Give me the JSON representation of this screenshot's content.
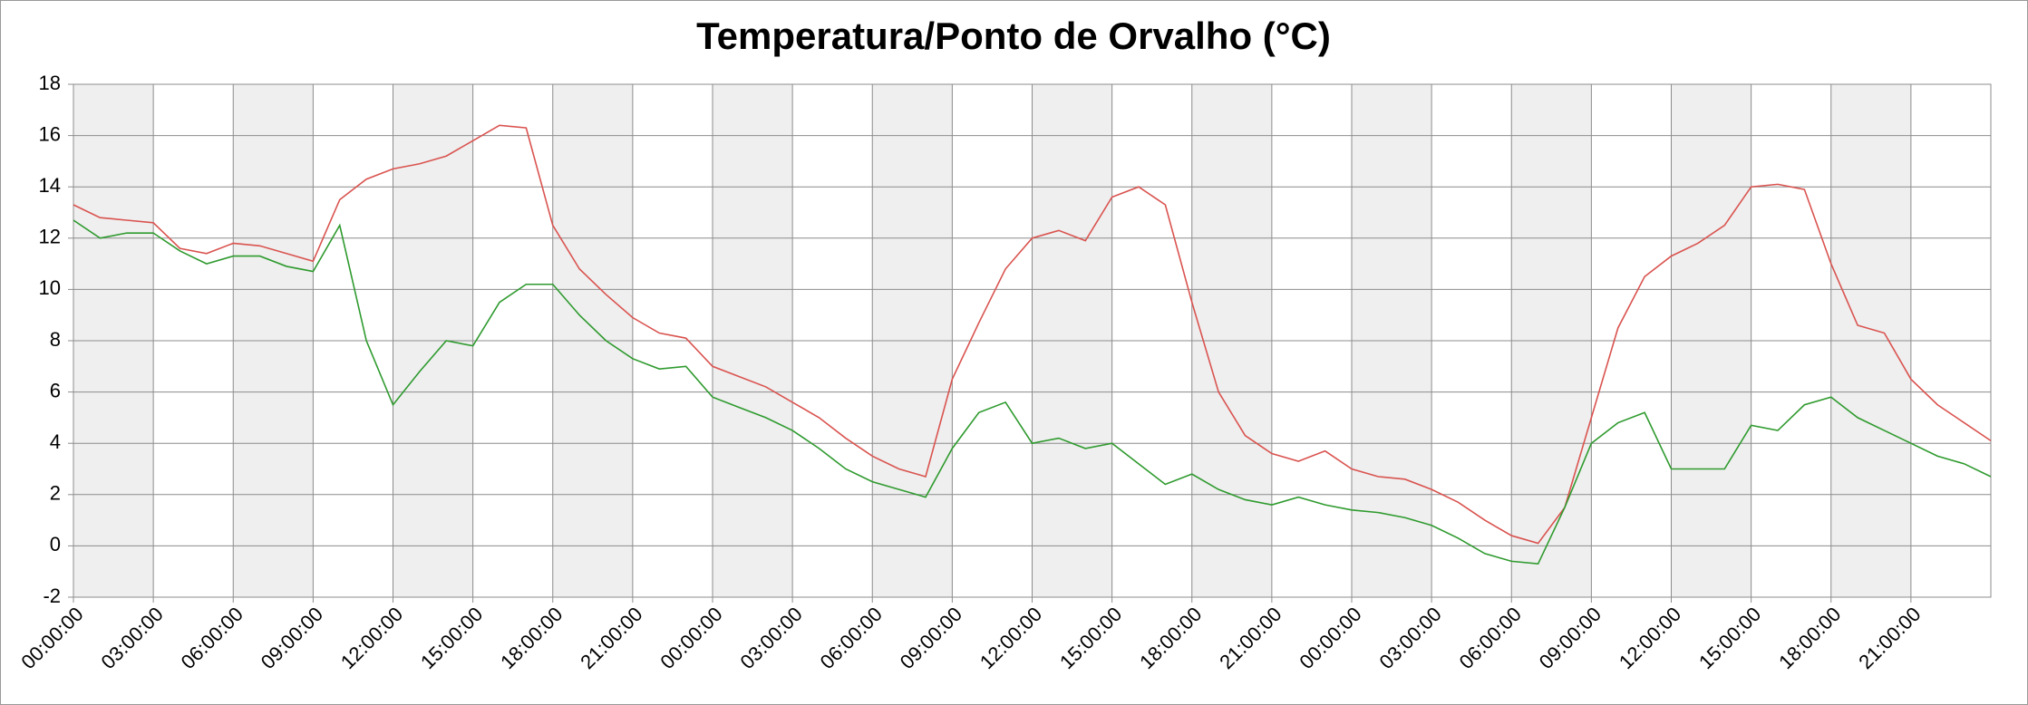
{
  "chart_data": {
    "type": "line",
    "title": "Temperatura/Ponto de Orvalho (°C)",
    "x": [
      0,
      1,
      2,
      3,
      4,
      5,
      6,
      7,
      8,
      9,
      10,
      11,
      12,
      13,
      14,
      15,
      16,
      17,
      18,
      19,
      20,
      21,
      22,
      23,
      24,
      25,
      26,
      27,
      28,
      29,
      30,
      31,
      32,
      33,
      34,
      35,
      36,
      37,
      38,
      39,
      40,
      41,
      42,
      43,
      44,
      45,
      46,
      47,
      48,
      49,
      50,
      51,
      52,
      53,
      54,
      55,
      56,
      57,
      58,
      59,
      60,
      61,
      62,
      63,
      64,
      65,
      66,
      67,
      68,
      69,
      70,
      71,
      72
    ],
    "series": [
      {
        "color": "#d9534f",
        "values": [
          13.3,
          12.8,
          12.7,
          12.6,
          11.6,
          11.4,
          11.8,
          11.7,
          11.4,
          11.1,
          13.5,
          14.3,
          14.7,
          14.9,
          15.2,
          15.8,
          16.4,
          16.3,
          12.5,
          10.8,
          9.8,
          8.9,
          8.3,
          8.1,
          7.0,
          6.6,
          6.2,
          5.6,
          5.0,
          4.2,
          3.5,
          3.0,
          2.7,
          6.5,
          8.7,
          10.8,
          12.0,
          12.3,
          11.9,
          13.6,
          14.0,
          13.3,
          9.5,
          6.0,
          4.3,
          3.6,
          3.3,
          3.7,
          3.0,
          2.7,
          2.6,
          2.2,
          1.7,
          1.0,
          0.4,
          0.1,
          1.5,
          5.0,
          8.5,
          10.5,
          11.3,
          11.8,
          12.5,
          14.0,
          14.1,
          13.9,
          11.0,
          8.6,
          8.3,
          6.5,
          5.5,
          4.8,
          4.1
        ]
      },
      {
        "color": "#2e9a2e",
        "values": [
          12.7,
          12.0,
          12.2,
          12.2,
          11.5,
          11.0,
          11.3,
          11.3,
          10.9,
          10.7,
          12.5,
          8.0,
          5.5,
          6.8,
          8.0,
          7.8,
          9.5,
          10.2,
          10.2,
          9.0,
          8.0,
          7.3,
          6.9,
          7.0,
          5.8,
          5.4,
          5.0,
          4.5,
          3.8,
          3.0,
          2.5,
          2.2,
          1.9,
          3.8,
          5.2,
          5.6,
          4.0,
          4.2,
          3.8,
          4.0,
          3.2,
          2.4,
          2.8,
          2.2,
          1.8,
          1.6,
          1.9,
          1.6,
          1.4,
          1.3,
          1.1,
          0.8,
          0.3,
          -0.3,
          -0.6,
          -0.7,
          1.5,
          4.0,
          4.8,
          5.2,
          3.0,
          3.0,
          3.0,
          4.7,
          4.5,
          5.5,
          5.8,
          5.0,
          4.5,
          4.0,
          3.5,
          3.2,
          2.7
        ]
      }
    ],
    "xlim": [
      0,
      72
    ],
    "xticks": [
      {
        "value": 0,
        "label": "00:00:00"
      },
      {
        "value": 3,
        "label": "03:00:00"
      },
      {
        "value": 6,
        "label": "06:00:00"
      },
      {
        "value": 9,
        "label": "09:00:00"
      },
      {
        "value": 12,
        "label": "12:00:00"
      },
      {
        "value": 15,
        "label": "15:00:00"
      },
      {
        "value": 18,
        "label": "18:00:00"
      },
      {
        "value": 21,
        "label": "21:00:00"
      },
      {
        "value": 24,
        "label": "00:00:00"
      },
      {
        "value": 27,
        "label": "03:00:00"
      },
      {
        "value": 30,
        "label": "06:00:00"
      },
      {
        "value": 33,
        "label": "09:00:00"
      },
      {
        "value": 36,
        "label": "12:00:00"
      },
      {
        "value": 39,
        "label": "15:00:00"
      },
      {
        "value": 42,
        "label": "18:00:00"
      },
      {
        "value": 45,
        "label": "21:00:00"
      },
      {
        "value": 48,
        "label": "00:00:00"
      },
      {
        "value": 51,
        "label": "03:00:00"
      },
      {
        "value": 54,
        "label": "06:00:00"
      },
      {
        "value": 57,
        "label": "09:00:00"
      },
      {
        "value": 60,
        "label": "12:00:00"
      },
      {
        "value": 63,
        "label": "15:00:00"
      },
      {
        "value": 66,
        "label": "18:00:00"
      },
      {
        "value": 69,
        "label": "21:00:00"
      }
    ],
    "ylim": [
      -2,
      18
    ],
    "yticks": [
      -2,
      0,
      2,
      4,
      6,
      8,
      10,
      12,
      14,
      16,
      18
    ],
    "grid": true
  }
}
